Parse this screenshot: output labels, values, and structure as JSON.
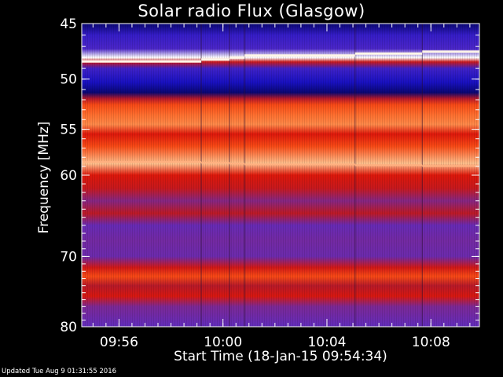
{
  "chart_data": {
    "type": "heatmap",
    "title": "Solar radio Flux (Glasgow)",
    "xlabel": "Start Time (18-Jan-15 09:54:34)",
    "ylabel": "Frequency [MHz]",
    "yticks": [
      45,
      50,
      55,
      60,
      70,
      80
    ],
    "ylim": [
      45,
      80
    ],
    "y_scale": "log",
    "xticks": [
      "09:56",
      "10:00",
      "10:04",
      "10:08"
    ],
    "xlim": [
      "09:54:34",
      "10:09:52"
    ],
    "footer": "Updated Tue Aug  9 01:31:55 2016",
    "colormap": [
      "#00003a",
      "#1a12c8",
      "#5a2cc8",
      "#7a2a9a",
      "#b81a2a",
      "#e0180a",
      "#ff5a1a",
      "#ffb070",
      "#ffffff"
    ],
    "segment_boundaries": [
      "09:59:10",
      "10:00:15",
      "10:00:50",
      "10:05:05",
      "10:07:40"
    ],
    "frequency_profile": [
      {
        "mhz": 45.0,
        "level": 0.05
      },
      {
        "mhz": 46.0,
        "level": 0.18
      },
      {
        "mhz": 47.2,
        "level": 0.22
      },
      {
        "mhz": 48.0,
        "level": 1.0
      },
      {
        "mhz": 48.4,
        "level": 0.55
      },
      {
        "mhz": 49.0,
        "level": 0.2
      },
      {
        "mhz": 50.3,
        "level": 0.12
      },
      {
        "mhz": 51.3,
        "level": 0.05
      },
      {
        "mhz": 51.9,
        "level": 0.5
      },
      {
        "mhz": 52.5,
        "level": 0.72
      },
      {
        "mhz": 53.5,
        "level": 0.78
      },
      {
        "mhz": 54.5,
        "level": 0.82
      },
      {
        "mhz": 55.5,
        "level": 0.62
      },
      {
        "mhz": 56.8,
        "level": 0.72
      },
      {
        "mhz": 58.7,
        "level": 0.9
      },
      {
        "mhz": 60.0,
        "level": 0.62
      },
      {
        "mhz": 61.5,
        "level": 0.55
      },
      {
        "mhz": 63.0,
        "level": 0.4
      },
      {
        "mhz": 64.5,
        "level": 0.52
      },
      {
        "mhz": 66.0,
        "level": 0.3
      },
      {
        "mhz": 68.0,
        "level": 0.35
      },
      {
        "mhz": 70.0,
        "level": 0.32
      },
      {
        "mhz": 71.5,
        "level": 0.58
      },
      {
        "mhz": 72.7,
        "level": 0.72
      },
      {
        "mhz": 74.0,
        "level": 0.5
      },
      {
        "mhz": 75.5,
        "level": 0.6
      },
      {
        "mhz": 77.0,
        "level": 0.38
      },
      {
        "mhz": 80.0,
        "level": 0.28
      }
    ],
    "bright_lines_mhz": [
      48.0,
      58.7
    ]
  }
}
